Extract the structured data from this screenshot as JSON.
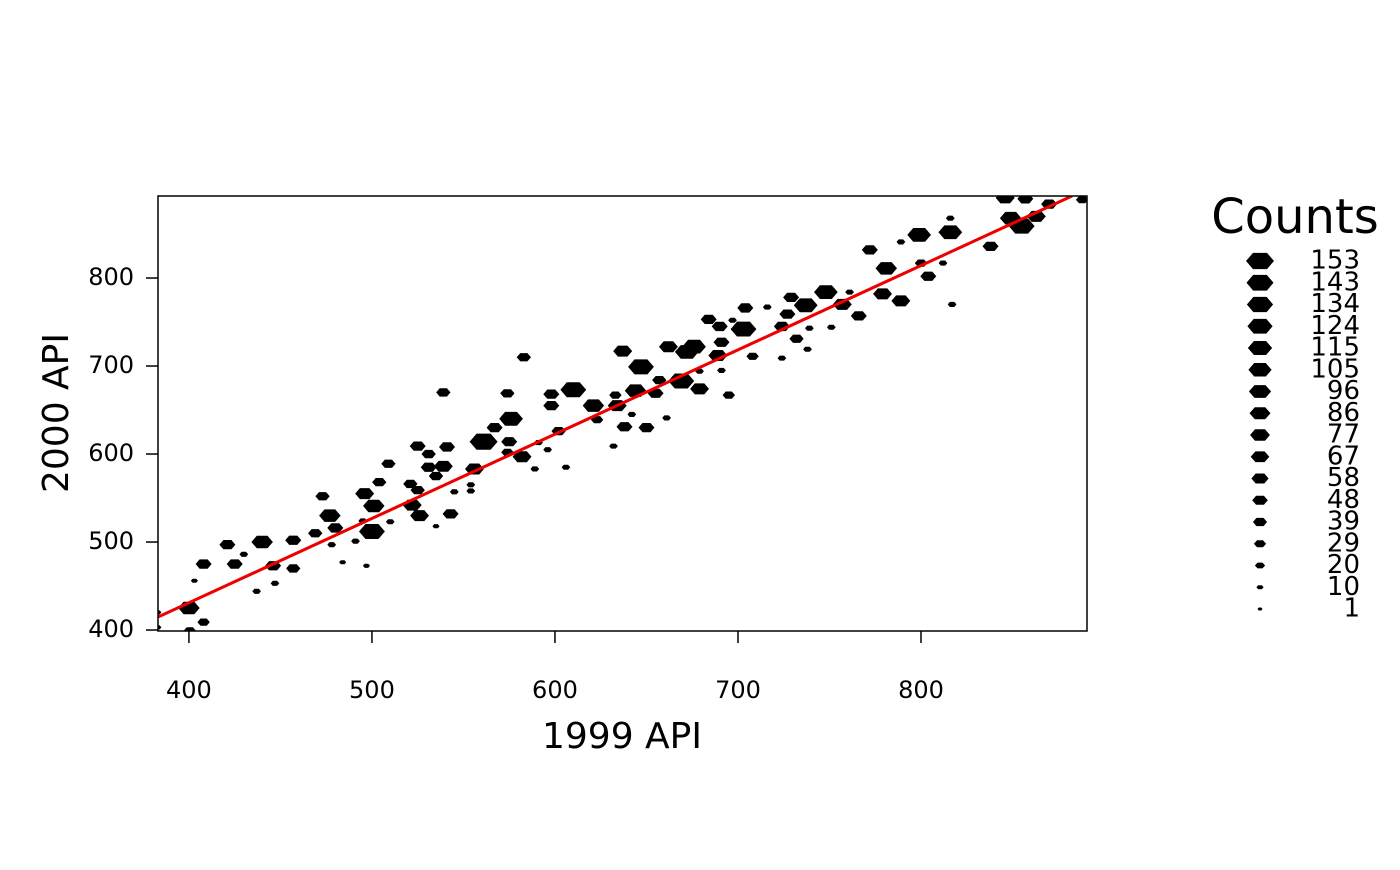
{
  "chart_data": {
    "type": "hexbin",
    "xlabel": "1999 API",
    "ylabel": "2000 API",
    "xlim": [
      383.1,
      890.7
    ],
    "ylim": [
      398.9,
      893.2
    ],
    "xticks": [
      400,
      500,
      600,
      700,
      800
    ],
    "yticks": [
      400,
      500,
      600,
      700,
      800
    ],
    "color": "#000000",
    "x": [
      383,
      383,
      400,
      400.5,
      403,
      408,
      408,
      421,
      425,
      430,
      437,
      440,
      446,
      447,
      457,
      457,
      469,
      473,
      477,
      478,
      480,
      484,
      491,
      495,
      496,
      497,
      500,
      501,
      504,
      509,
      510,
      521,
      522,
      525,
      525,
      526,
      531,
      531,
      535,
      535,
      539,
      541,
      539,
      543,
      545,
      554,
      554,
      556,
      561,
      567,
      574,
      575,
      574,
      576,
      582,
      583,
      589,
      591,
      596,
      598,
      598,
      602,
      606,
      610,
      621,
      623,
      632,
      633,
      634,
      637,
      638,
      642,
      644,
      647,
      650,
      655,
      657,
      661,
      662,
      669,
      672,
      676,
      679,
      679,
      684,
      689,
      690,
      691,
      691,
      695,
      697,
      703,
      704,
      708,
      716,
      724,
      724,
      729,
      727,
      732,
      737,
      739,
      738,
      748,
      751,
      757,
      761,
      766,
      772,
      781,
      779,
      789,
      789,
      799,
      800,
      804,
      812,
      816,
      816,
      817,
      838,
      846,
      849,
      855,
      857,
      863,
      870,
      888
    ],
    "y": [
      420,
      403,
      425,
      399,
      456,
      475,
      409,
      497,
      475,
      486,
      444,
      500,
      473,
      453,
      470,
      502,
      510,
      552,
      530,
      497,
      516,
      477,
      501,
      524,
      555,
      473,
      512,
      541,
      568,
      589,
      523,
      566,
      542,
      609,
      559,
      530,
      600,
      585,
      518,
      575,
      670,
      608,
      586,
      532,
      557,
      565,
      558,
      583,
      614,
      630,
      669,
      614,
      602,
      640,
      597,
      710,
      583,
      613,
      605,
      668,
      655,
      626,
      585,
      673,
      655,
      639,
      609,
      667,
      655,
      717,
      631,
      645,
      672,
      699,
      630,
      669,
      684,
      641,
      722,
      683,
      716,
      722,
      674,
      694,
      753,
      712,
      745,
      695,
      727,
      667,
      752,
      742,
      766,
      711,
      767,
      745,
      709,
      778,
      759,
      731,
      769,
      743,
      719,
      784,
      744,
      770,
      784,
      757,
      832,
      811,
      782,
      841,
      774,
      849,
      817,
      802,
      817,
      852,
      868,
      770,
      836,
      891,
      868,
      859,
      890,
      870,
      884,
      889
    ],
    "counts": [
      10,
      10,
      90,
      30,
      10,
      50,
      30,
      50,
      50,
      15,
      15,
      90,
      50,
      15,
      40,
      50,
      40,
      40,
      90,
      15,
      50,
      10,
      15,
      15,
      70,
      10,
      130,
      90,
      40,
      40,
      15,
      40,
      70,
      50,
      40,
      70,
      40,
      50,
      10,
      40,
      40,
      50,
      70,
      50,
      15,
      15,
      15,
      70,
      153,
      50,
      40,
      50,
      30,
      110,
      70,
      40,
      15,
      15,
      15,
      50,
      50,
      40,
      15,
      130,
      90,
      30,
      15,
      30,
      70,
      70,
      50,
      15,
      90,
      130,
      50,
      50,
      40,
      15,
      70,
      130,
      110,
      110,
      70,
      15,
      50,
      70,
      50,
      15,
      50,
      30,
      15,
      130,
      50,
      30,
      15,
      50,
      15,
      50,
      50,
      40,
      110,
      15,
      15,
      110,
      15,
      70,
      15,
      50,
      50,
      90,
      70,
      15,
      70,
      110,
      30,
      50,
      15,
      110,
      15,
      15,
      50,
      70,
      90,
      130,
      50,
      70,
      50,
      30
    ],
    "fit": {
      "color": "#ee0000",
      "x": [
        383.1,
        882.5
      ],
      "y": [
        414.8,
        893.2
      ]
    },
    "legend": {
      "title": "Counts",
      "levels": [
        153,
        143,
        134,
        124,
        115,
        105,
        96,
        86,
        77,
        67,
        58,
        48,
        39,
        29,
        20,
        10,
        1
      ]
    }
  }
}
